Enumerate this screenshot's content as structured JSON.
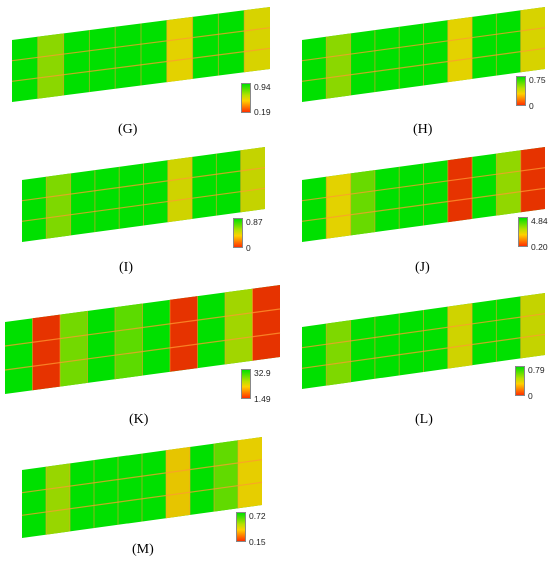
{
  "panels": [
    {
      "id": "G",
      "label": "(G)",
      "max": "0.94",
      "min": "0.19",
      "intensity": 0.55
    },
    {
      "id": "H",
      "label": "(H)",
      "max": "0.75",
      "min": "0",
      "intensity": 0.55
    },
    {
      "id": "I",
      "label": "(I)",
      "max": "0.87",
      "min": "0",
      "intensity": 0.5
    },
    {
      "id": "J",
      "label": "(J)",
      "max": "4.84",
      "min": "0.20",
      "intensity": 0.9
    },
    {
      "id": "K",
      "label": "(K)",
      "max": "32.9",
      "min": "1.49",
      "intensity": 1.0
    },
    {
      "id": "L",
      "label": "(L)",
      "max": "0.79",
      "min": "0",
      "intensity": 0.5
    },
    {
      "id": "M",
      "label": "(M)",
      "max": "0.72",
      "min": "0.15",
      "intensity": 0.6
    }
  ],
  "colors": {
    "high": "#00e000",
    "mid": "#ffd000",
    "low": "#ff2000",
    "grid": "#ff9a30"
  }
}
